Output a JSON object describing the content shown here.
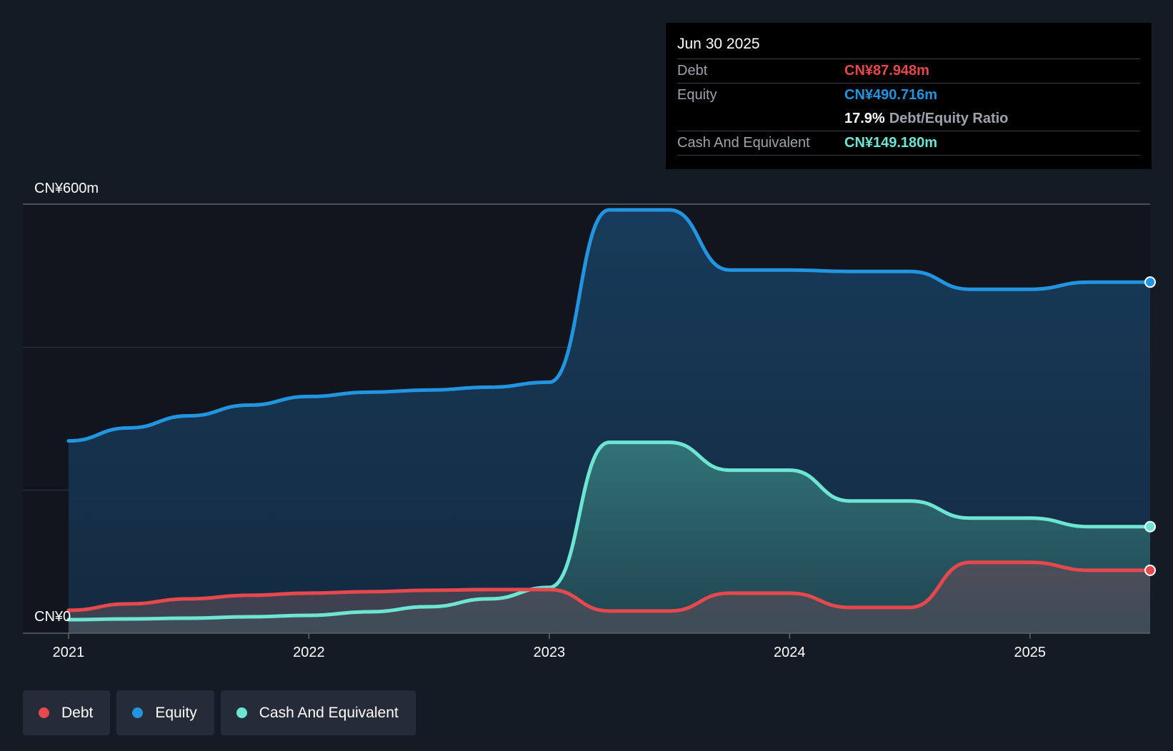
{
  "tooltip": {
    "date": "Jun 30 2025",
    "debt_label": "Debt",
    "debt_value": "CN¥87.948m",
    "equity_label": "Equity",
    "equity_value": "CN¥490.716m",
    "ratio_value": "17.9%",
    "ratio_label": "Debt/Equity Ratio",
    "cash_label": "Cash And Equivalent",
    "cash_value": "CN¥149.180m"
  },
  "legend": {
    "debt": "Debt",
    "equity": "Equity",
    "cash": "Cash And Equivalent"
  },
  "colors": {
    "debt": "#e5484d",
    "equity": "#2394df",
    "cash": "#6ee5d3",
    "background": "#151b24",
    "plot_background": "#11161e"
  },
  "chart_data": {
    "type": "area",
    "x_unit": "year",
    "ylim": [
      0,
      600
    ],
    "y_tick_labels": [
      "CN¥0",
      "CN¥600m"
    ],
    "x_tick_values": [
      2021,
      2022,
      2023,
      2024,
      2025
    ],
    "x_tick_labels": [
      "2021",
      "2022",
      "2023",
      "2024",
      "2025"
    ],
    "x_range": [
      2020.81,
      2025.5
    ],
    "series": [
      {
        "name": "Equity",
        "key": "equity",
        "x": [
          2021.0,
          2021.25,
          2021.5,
          2021.75,
          2022.0,
          2022.25,
          2022.5,
          2022.75,
          2023.0,
          2023.25,
          2023.5,
          2023.75,
          2024.0,
          2024.25,
          2024.5,
          2024.75,
          2025.0,
          2025.25,
          2025.5
        ],
        "values": [
          269,
          287,
          304,
          319,
          331,
          337,
          340,
          344,
          351,
          592,
          592,
          508,
          508,
          506,
          506,
          481,
          481,
          491,
          491
        ]
      },
      {
        "name": "Cash And Equivalent",
        "key": "cash",
        "x": [
          2021.0,
          2021.25,
          2021.5,
          2021.75,
          2022.0,
          2022.25,
          2022.5,
          2022.75,
          2023.0,
          2023.25,
          2023.5,
          2023.75,
          2024.0,
          2024.25,
          2024.5,
          2024.75,
          2025.0,
          2025.25,
          2025.5
        ],
        "values": [
          19,
          20,
          21,
          23,
          25,
          30,
          37,
          48,
          64,
          267,
          267,
          228,
          228,
          185,
          185,
          161,
          161,
          149,
          149
        ]
      },
      {
        "name": "Debt",
        "key": "debt",
        "x": [
          2021.0,
          2021.25,
          2021.5,
          2021.75,
          2022.0,
          2022.25,
          2022.5,
          2022.75,
          2023.0,
          2023.25,
          2023.5,
          2023.75,
          2024.0,
          2024.25,
          2024.5,
          2024.75,
          2025.0,
          2025.25,
          2025.5
        ],
        "values": [
          32,
          41,
          48,
          53,
          56,
          58,
          60,
          61,
          61,
          31,
          31,
          56,
          56,
          36,
          36,
          99,
          99,
          88,
          88
        ]
      }
    ]
  }
}
